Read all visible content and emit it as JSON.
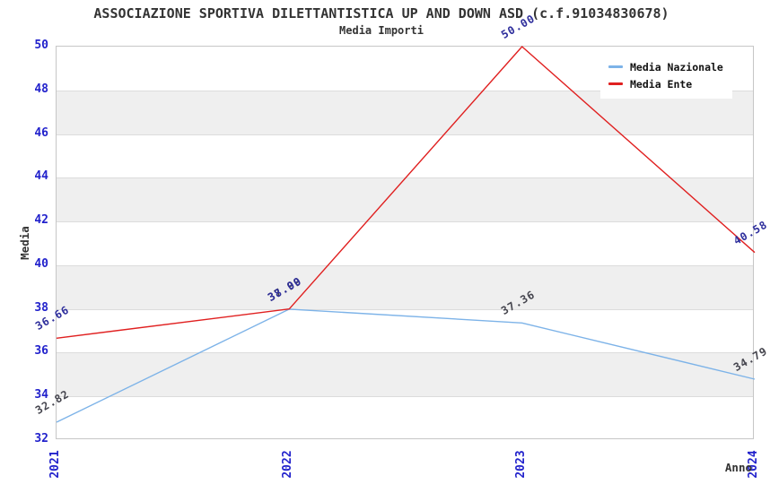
{
  "chart_data": {
    "type": "line",
    "title": "ASSOCIAZIONE SPORTIVA DILETTANTISTICA UP AND DOWN ASD (c.f.91034830678)",
    "subtitle": "Media Importi",
    "xlabel": "Anno",
    "ylabel": "Media",
    "x": [
      "2021",
      "2022",
      "2023",
      "2024"
    ],
    "ylim": [
      32,
      50
    ],
    "ytick_step": 2,
    "grid": "horizontal gridlines with alternating shaded bands",
    "legend_position": "top-right",
    "series": [
      {
        "name": "Media Nazionale",
        "color": "#7db3e8",
        "label_color": "#45454e",
        "values": [
          32.82,
          37.99,
          37.36,
          34.79
        ],
        "point_labels": [
          "32.82",
          "37.99",
          "37.36",
          "34.79"
        ]
      },
      {
        "name": "Media Ente",
        "color": "#e02020",
        "label_color": "#2e2e9c",
        "values": [
          36.66,
          38.0,
          50.0,
          40.58
        ],
        "point_labels": [
          "36.66",
          "38.00",
          "50.00",
          "40.58"
        ]
      }
    ]
  },
  "colors": {
    "tick_label": "#2222cc",
    "text": "#333333",
    "band": "#efefef",
    "gridline": "#dcdcdc",
    "plot_border": "#c6c6c6",
    "background": "#ffffff"
  }
}
